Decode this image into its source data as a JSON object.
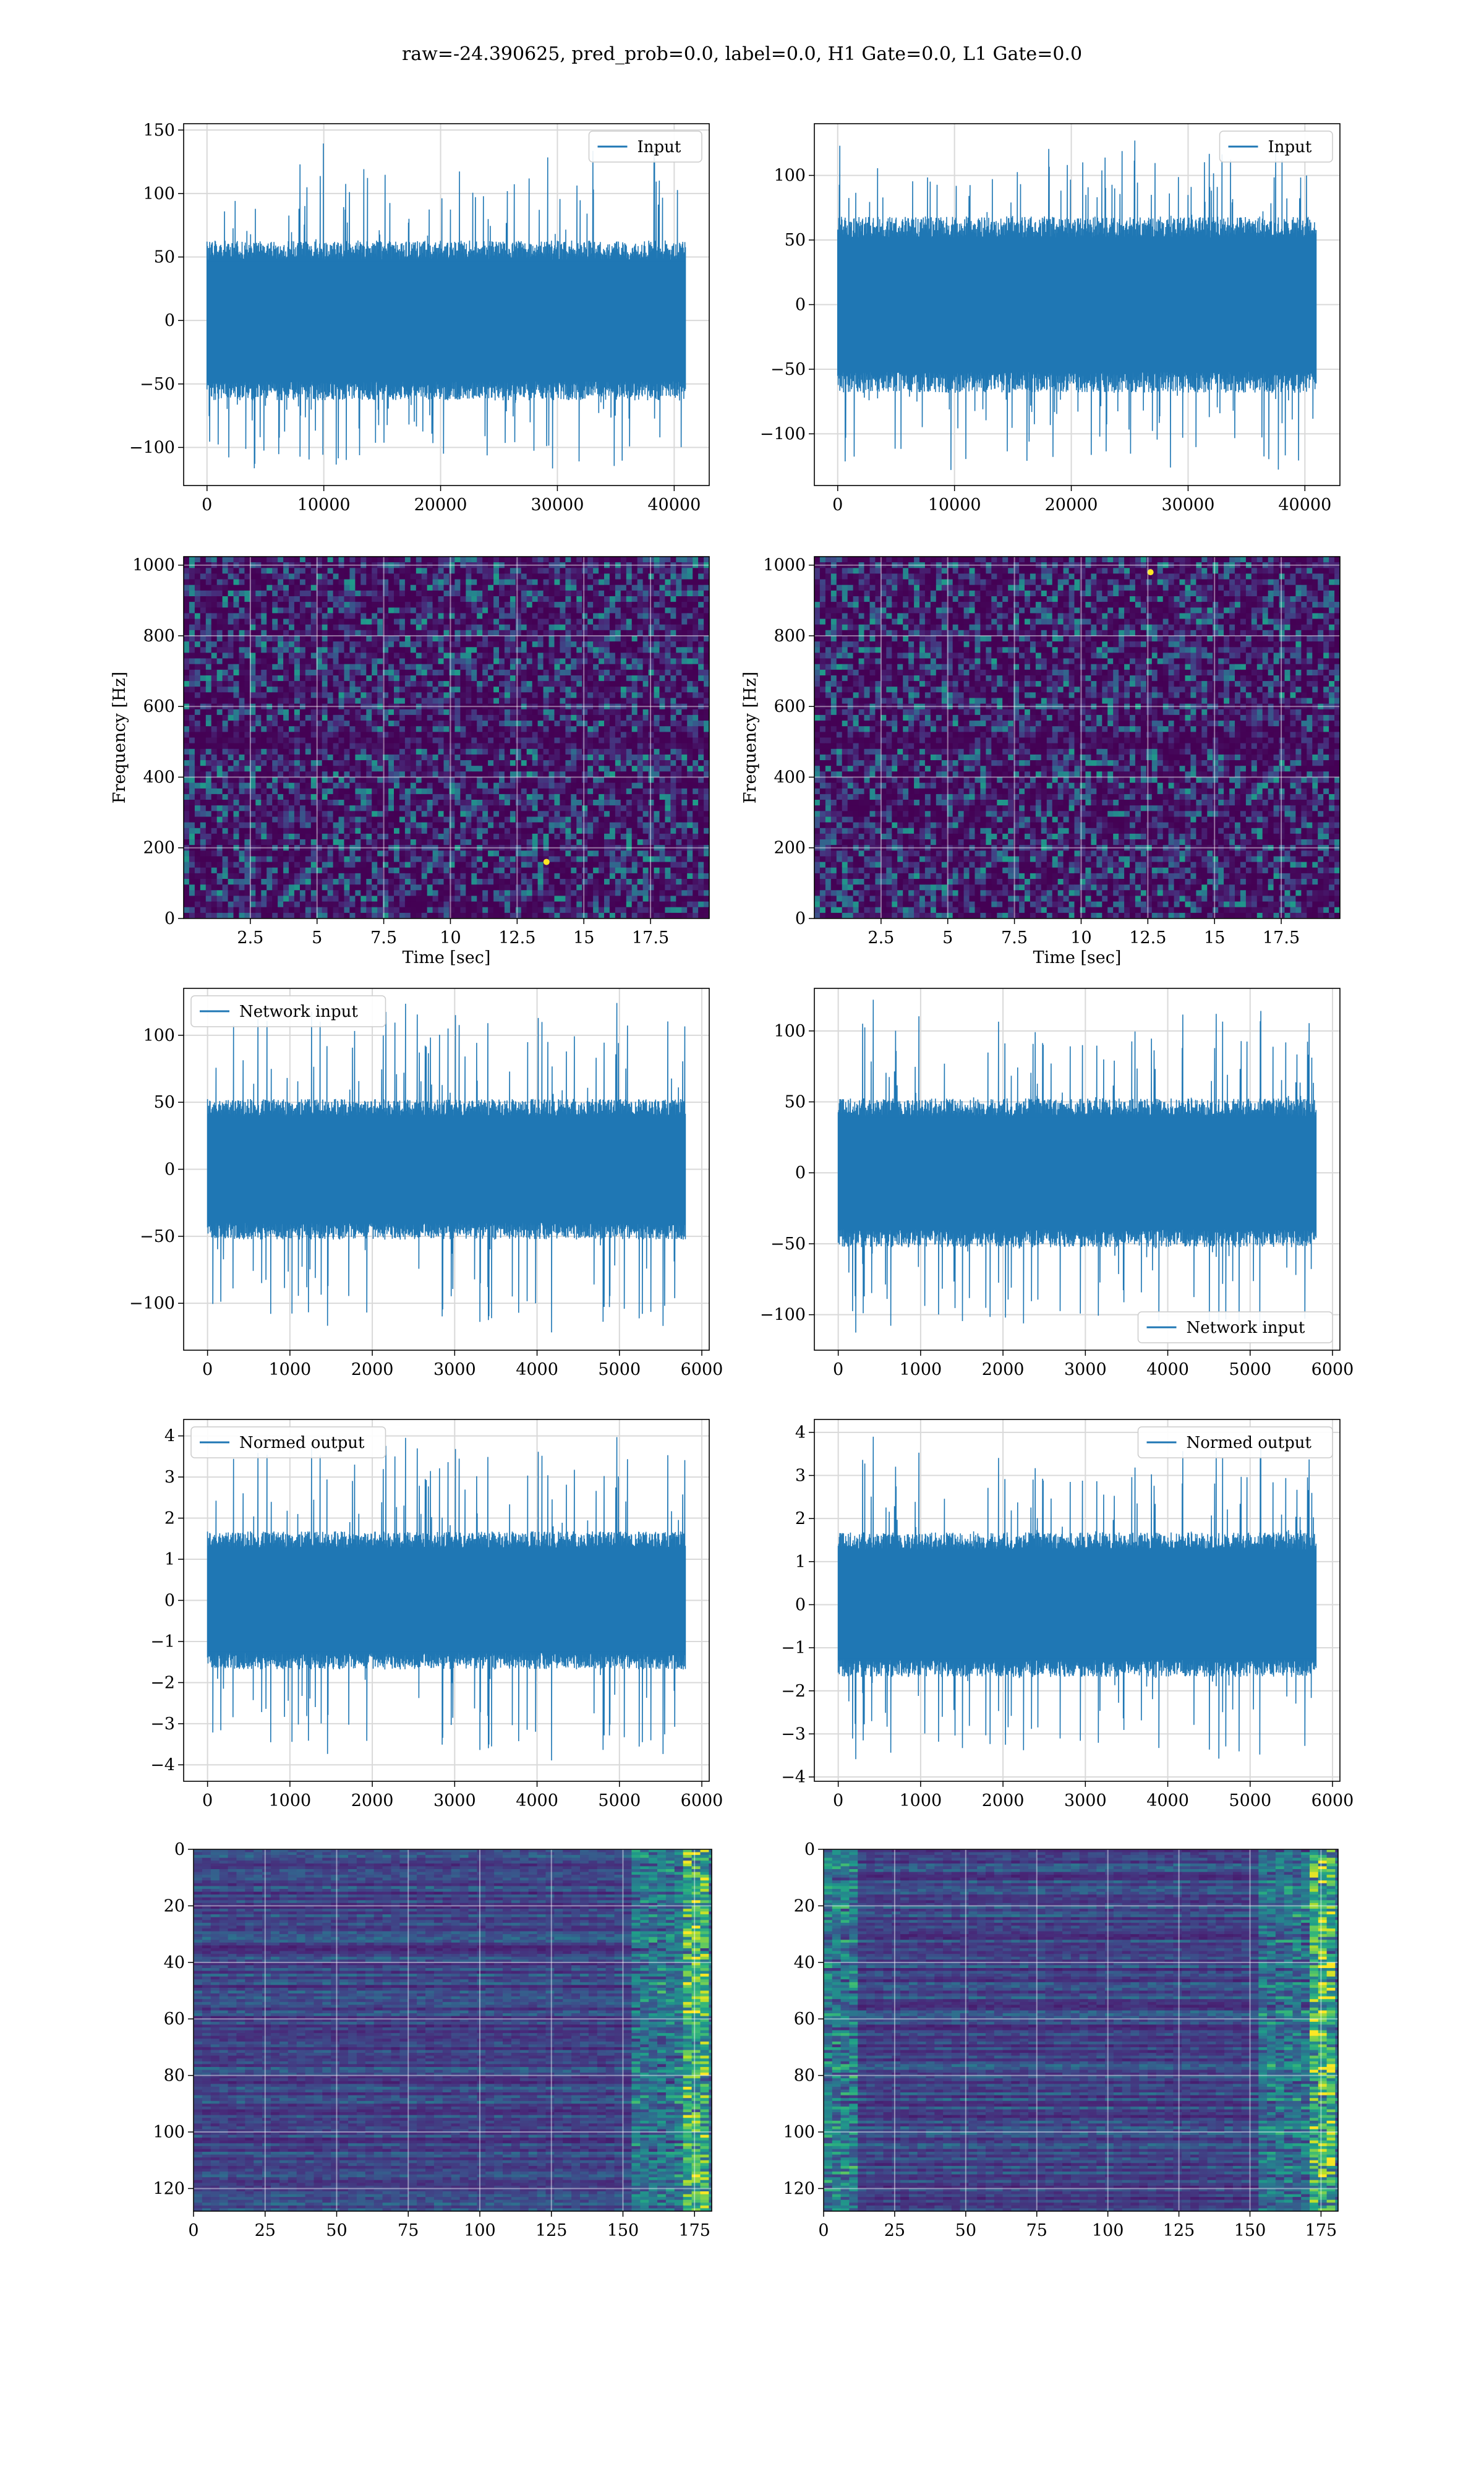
{
  "figure": {
    "title": "raw=-24.390625, pred_prob=0.0, label=0.0, H1 Gate=0.0, L1 Gate=0.0"
  },
  "colors": {
    "series": "#1f77b4",
    "grid": "#d9d9d9",
    "viridis_low": "#440154",
    "viridis_mid": "#21918c",
    "viridis_high": "#fde725"
  },
  "chart_data": [
    {
      "id": "input-h1",
      "type": "line",
      "row": 0,
      "col": 0,
      "legend": {
        "label": "Input",
        "loc": "upper right"
      },
      "xlim": [
        -2000,
        43000
      ],
      "ylim": [
        -130,
        155
      ],
      "xticks": [
        0,
        10000,
        20000,
        30000,
        40000
      ],
      "yticks": [
        -100,
        -50,
        0,
        50,
        100,
        150
      ],
      "grid": true,
      "signal": {
        "x_range": [
          0,
          40960
        ],
        "baseline": 0,
        "band": 60,
        "peak_max": 140,
        "peak_min": -122,
        "n": 900,
        "seed": 11
      }
    },
    {
      "id": "input-l1",
      "type": "line",
      "row": 0,
      "col": 1,
      "legend": {
        "label": "Input",
        "loc": "upper right"
      },
      "xlim": [
        -2000,
        43000
      ],
      "ylim": [
        -140,
        140
      ],
      "xticks": [
        0,
        10000,
        20000,
        30000,
        40000
      ],
      "yticks": [
        -100,
        -50,
        0,
        50,
        100
      ],
      "grid": true,
      "signal": {
        "x_range": [
          0,
          40960
        ],
        "baseline": 0,
        "band": 65,
        "peak_max": 127,
        "peak_min": -128,
        "n": 900,
        "seed": 23
      }
    },
    {
      "id": "spectrogram-h1",
      "type": "heatmap",
      "row": 1,
      "col": 0,
      "xlim": [
        0,
        19.7
      ],
      "ylim": [
        0,
        1024
      ],
      "xticks": [
        2.5,
        5.0,
        7.5,
        10.0,
        12.5,
        15.0,
        17.5
      ],
      "yticks": [
        0,
        200,
        400,
        600,
        800,
        1000
      ],
      "xlabel": "Time [sec]",
      "ylabel": "Frequency [Hz]",
      "grid": true,
      "colormap": "viridis",
      "texture": {
        "kind": "spectrogram",
        "seed": 5,
        "hot_spots": [
          [
            13.6,
            160
          ]
        ]
      }
    },
    {
      "id": "spectrogram-l1",
      "type": "heatmap",
      "row": 1,
      "col": 1,
      "xlim": [
        0,
        19.7
      ],
      "ylim": [
        0,
        1024
      ],
      "xticks": [
        2.5,
        5.0,
        7.5,
        10.0,
        12.5,
        15.0,
        17.5
      ],
      "yticks": [
        0,
        200,
        400,
        600,
        800,
        1000
      ],
      "xlabel": "Time [sec]",
      "ylabel": "Frequency [Hz]",
      "grid": true,
      "colormap": "viridis",
      "texture": {
        "kind": "spectrogram",
        "seed": 9,
        "hot_spots": [
          [
            12.6,
            980
          ]
        ]
      }
    },
    {
      "id": "network-input-h1",
      "type": "line",
      "row": 2,
      "col": 0,
      "legend": {
        "label": "Network input",
        "loc": "upper left"
      },
      "xlim": [
        -290,
        6090
      ],
      "ylim": [
        -135,
        135
      ],
      "xticks": [
        0,
        1000,
        2000,
        3000,
        4000,
        5000,
        6000
      ],
      "yticks": [
        -100,
        -50,
        0,
        50,
        100
      ],
      "grid": true,
      "signal": {
        "x_range": [
          0,
          5800
        ],
        "baseline": 0,
        "band": 50,
        "peak_max": 125,
        "peak_min": -122,
        "n": 900,
        "seed": 31
      }
    },
    {
      "id": "network-input-l1",
      "type": "line",
      "row": 2,
      "col": 1,
      "legend": {
        "label": "Network input",
        "loc": "lower right"
      },
      "xlim": [
        -290,
        6090
      ],
      "ylim": [
        -125,
        130
      ],
      "xticks": [
        0,
        1000,
        2000,
        3000,
        4000,
        5000,
        6000
      ],
      "yticks": [
        -100,
        -50,
        0,
        50,
        100
      ],
      "grid": true,
      "signal": {
        "x_range": [
          0,
          5800
        ],
        "baseline": 0,
        "band": 50,
        "peak_max": 122,
        "peak_min": -113,
        "n": 900,
        "seed": 47
      }
    },
    {
      "id": "normed-output-h1",
      "type": "line",
      "row": 3,
      "col": 0,
      "legend": {
        "label": "Normed output",
        "loc": "upper left"
      },
      "xlim": [
        -290,
        6090
      ],
      "ylim": [
        -4.4,
        4.4
      ],
      "xticks": [
        0,
        1000,
        2000,
        3000,
        4000,
        5000,
        6000
      ],
      "yticks": [
        -4,
        -3,
        -2,
        -1,
        0,
        1,
        2,
        3,
        4
      ],
      "grid": true,
      "signal": {
        "x_range": [
          0,
          5800
        ],
        "baseline": 0,
        "band": 1.6,
        "peak_max": 4.0,
        "peak_min": -3.9,
        "n": 900,
        "seed": 31
      }
    },
    {
      "id": "normed-output-l1",
      "type": "line",
      "row": 3,
      "col": 1,
      "legend": {
        "label": "Normed output",
        "loc": "upper right"
      },
      "xlim": [
        -290,
        6090
      ],
      "ylim": [
        -4.1,
        4.3
      ],
      "xticks": [
        0,
        1000,
        2000,
        3000,
        4000,
        5000,
        6000
      ],
      "yticks": [
        -4,
        -3,
        -2,
        -1,
        0,
        1,
        2,
        3,
        4
      ],
      "grid": true,
      "signal": {
        "x_range": [
          0,
          5800
        ],
        "baseline": 0,
        "band": 1.6,
        "peak_max": 3.9,
        "peak_min": -3.6,
        "n": 900,
        "seed": 47
      }
    },
    {
      "id": "feature-map-h1",
      "type": "heatmap",
      "row": 4,
      "col": 0,
      "xlim": [
        0,
        181
      ],
      "ylim": [
        128,
        0
      ],
      "xticks": [
        0,
        25,
        50,
        75,
        100,
        125,
        150,
        175
      ],
      "yticks": [
        0,
        20,
        40,
        60,
        80,
        100,
        120
      ],
      "grid": true,
      "colormap": "viridis",
      "texture": {
        "kind": "feature-map",
        "seed": 17,
        "bright_columns": [
          150,
          175
        ]
      }
    },
    {
      "id": "feature-map-l1",
      "type": "heatmap",
      "row": 4,
      "col": 1,
      "xlim": [
        0,
        181
      ],
      "ylim": [
        128,
        0
      ],
      "xticks": [
        0,
        25,
        50,
        75,
        100,
        125,
        150,
        175
      ],
      "yticks": [
        0,
        20,
        40,
        60,
        80,
        100,
        120
      ],
      "grid": true,
      "colormap": "viridis",
      "texture": {
        "kind": "feature-map",
        "seed": 29,
        "bright_columns": [
          0,
          175
        ]
      }
    }
  ]
}
